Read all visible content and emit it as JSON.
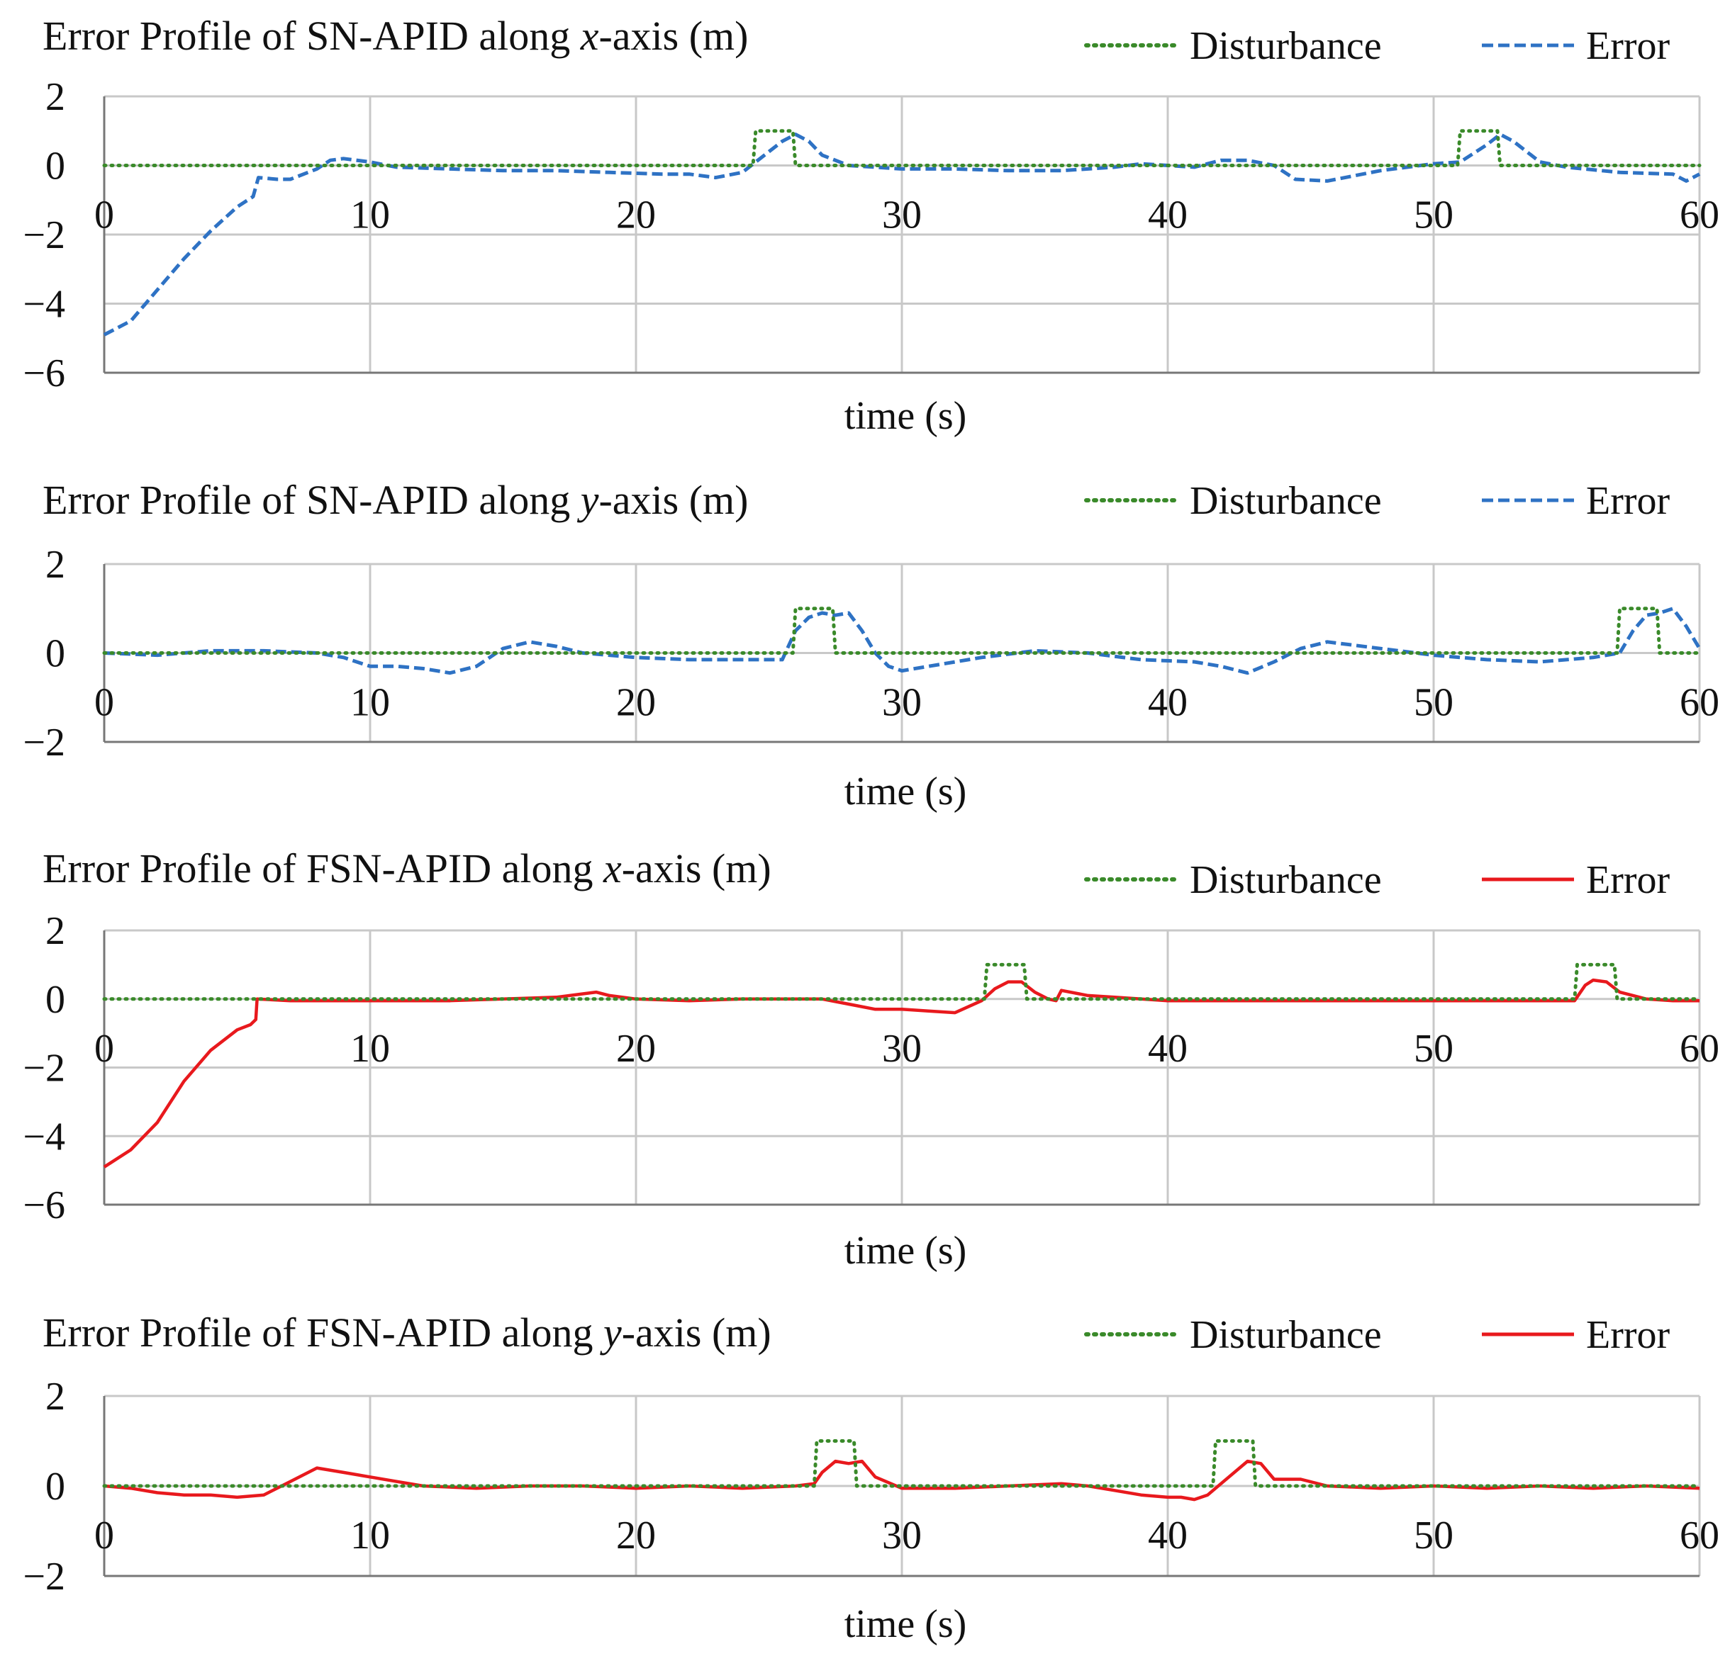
{
  "colors": {
    "disturbance": "#3a8a2a",
    "error_sn": "#2e72c4",
    "error_fsn": "#e8191d",
    "grid": "#c8c8c8",
    "axis": "#777777"
  },
  "chart_data": [
    {
      "type": "line",
      "title_prefix": "Error Profile of SN-APID along ",
      "title_axis": "x",
      "title_suffix": "-axis (m)",
      "xlabel": "time (s)",
      "xlim": [
        0,
        60
      ],
      "ylim": [
        -6,
        2
      ],
      "xticks": [
        "0",
        "10",
        "20",
        "30",
        "40",
        "50",
        "60"
      ],
      "yticks": [
        "2",
        "0",
        "−2",
        "−4",
        "−6"
      ],
      "legend": [
        "Disturbance",
        "Error"
      ],
      "series": [
        {
          "name": "Disturbance",
          "style": "dotted",
          "x": [
            0,
            24.4,
            24.5,
            25.9,
            26.0,
            50.9,
            51.0,
            52.4,
            52.5,
            60
          ],
          "y": [
            0,
            0,
            1,
            1,
            0,
            0,
            1,
            1,
            0,
            0
          ]
        },
        {
          "name": "Error",
          "style": "dashed",
          "x": [
            0,
            1,
            2,
            3,
            4,
            5,
            5.6,
            5.8,
            6.5,
            7,
            8,
            8.5,
            9,
            10,
            11,
            13,
            15,
            17,
            19,
            21,
            22,
            23,
            24,
            25,
            25.5,
            26,
            26.5,
            27,
            28,
            30,
            32,
            34,
            36,
            38,
            39,
            40,
            41,
            42,
            43,
            44,
            44.8,
            46,
            47,
            48,
            50,
            51,
            52,
            52.5,
            53,
            54,
            55,
            57,
            59,
            59.5,
            60
          ],
          "y": [
            -4.9,
            -4.5,
            -3.6,
            -2.7,
            -1.9,
            -1.2,
            -0.9,
            -0.35,
            -0.4,
            -0.4,
            -0.1,
            0.15,
            0.2,
            0.1,
            -0.05,
            -0.1,
            -0.15,
            -0.15,
            -0.2,
            -0.25,
            -0.25,
            -0.35,
            -0.2,
            0.4,
            0.7,
            0.9,
            0.7,
            0.3,
            0,
            -0.1,
            -0.1,
            -0.15,
            -0.15,
            -0.05,
            0.05,
            0,
            -0.05,
            0.15,
            0.15,
            0,
            -0.4,
            -0.45,
            -0.3,
            -0.15,
            0.05,
            0.1,
            0.6,
            0.9,
            0.7,
            0.1,
            -0.05,
            -0.2,
            -0.25,
            -0.45,
            -0.25
          ]
        }
      ]
    },
    {
      "type": "line",
      "title_prefix": "Error Profile of SN-APID along ",
      "title_axis": "y",
      "title_suffix": "-axis (m)",
      "xlabel": "time (s)",
      "xlim": [
        0,
        60
      ],
      "ylim": [
        -2,
        2
      ],
      "xticks": [
        "0",
        "10",
        "20",
        "30",
        "40",
        "50",
        "60"
      ],
      "yticks": [
        "2",
        "0",
        "−2"
      ],
      "legend": [
        "Disturbance",
        "Error"
      ],
      "series": [
        {
          "name": "Disturbance",
          "style": "dotted",
          "x": [
            0,
            25.9,
            26.0,
            27.4,
            27.5,
            56.9,
            57.0,
            58.4,
            58.5,
            60
          ],
          "y": [
            0,
            0,
            1,
            1,
            0,
            0,
            1,
            1,
            0,
            0
          ]
        },
        {
          "name": "Error",
          "style": "dashed",
          "x": [
            0,
            2,
            4,
            6,
            8,
            9,
            10,
            11,
            12,
            13,
            14,
            15,
            16,
            17,
            18,
            20,
            22,
            24,
            25.5,
            26,
            26.5,
            27,
            27.5,
            28,
            28.5,
            29,
            29.5,
            30,
            31,
            33,
            35,
            37,
            39,
            41,
            42,
            43,
            44,
            45,
            46,
            48,
            50,
            52,
            54,
            56,
            57,
            57.5,
            58,
            58.5,
            59,
            59.5,
            60
          ],
          "y": [
            0,
            -0.05,
            0.05,
            0.05,
            0,
            -0.1,
            -0.3,
            -0.3,
            -0.35,
            -0.45,
            -0.3,
            0.1,
            0.25,
            0.15,
            0,
            -0.1,
            -0.15,
            -0.15,
            -0.15,
            0.5,
            0.8,
            0.9,
            0.85,
            0.9,
            0.5,
            0,
            -0.3,
            -0.4,
            -0.3,
            -0.1,
            0.05,
            0,
            -0.15,
            -0.2,
            -0.3,
            -0.45,
            -0.2,
            0.1,
            0.25,
            0.1,
            -0.05,
            -0.15,
            -0.2,
            -0.1,
            0,
            0.5,
            0.85,
            0.9,
            1.0,
            0.6,
            0.1
          ]
        }
      ]
    },
    {
      "type": "line",
      "title_prefix": "Error Profile of FSN-APID along ",
      "title_axis": "x",
      "title_suffix": "-axis (m)",
      "xlabel": "time (s)",
      "xlim": [
        0,
        60
      ],
      "ylim": [
        -6,
        2
      ],
      "xticks": [
        "0",
        "10",
        "20",
        "30",
        "40",
        "50",
        "60"
      ],
      "yticks": [
        "2",
        "0",
        "−2",
        "−4",
        "−6"
      ],
      "legend": [
        "Disturbance",
        "Error"
      ],
      "series": [
        {
          "name": "Disturbance",
          "style": "dotted",
          "x": [
            0,
            33.1,
            33.2,
            34.6,
            34.7,
            55.3,
            55.4,
            56.8,
            56.9,
            60
          ],
          "y": [
            0,
            0,
            1,
            1,
            0,
            0,
            1,
            1,
            0,
            0
          ]
        },
        {
          "name": "Error",
          "style": "solid",
          "x": [
            0,
            1,
            2,
            3,
            4,
            5,
            5.5,
            5.7,
            5.75,
            7,
            9,
            11,
            13,
            15,
            17,
            18,
            18.5,
            19,
            20,
            22,
            24,
            26,
            27,
            28,
            29,
            30,
            31,
            32,
            33,
            33.5,
            34,
            34.5,
            35,
            35.5,
            35.8,
            36,
            37,
            38,
            40,
            42,
            44,
            46,
            48,
            50,
            52,
            54,
            55.3,
            55.7,
            56,
            56.5,
            57,
            58,
            59,
            60
          ],
          "y": [
            -4.9,
            -4.4,
            -3.6,
            -2.4,
            -1.5,
            -0.9,
            -0.75,
            -0.6,
            0,
            -0.05,
            -0.05,
            -0.05,
            -0.05,
            0,
            0.05,
            0.15,
            0.2,
            0.1,
            0,
            -0.05,
            0,
            0,
            0,
            -0.15,
            -0.3,
            -0.3,
            -0.35,
            -0.4,
            -0.05,
            0.3,
            0.5,
            0.5,
            0.2,
            0,
            -0.05,
            0.25,
            0.1,
            0.05,
            -0.05,
            -0.05,
            -0.05,
            -0.05,
            -0.05,
            -0.05,
            -0.05,
            -0.05,
            -0.05,
            0.4,
            0.55,
            0.5,
            0.2,
            0,
            -0.05,
            -0.05
          ]
        }
      ]
    },
    {
      "type": "line",
      "title_prefix": "Error Profile of FSN-APID along ",
      "title_axis": "y",
      "title_suffix": "-axis (m)",
      "xlabel": "time (s)",
      "xlim": [
        0,
        60
      ],
      "ylim": [
        -2,
        2
      ],
      "xticks": [
        "0",
        "10",
        "20",
        "30",
        "40",
        "50",
        "60"
      ],
      "yticks": [
        "2",
        "0",
        "−2"
      ],
      "legend": [
        "Disturbance",
        "Error"
      ],
      "series": [
        {
          "name": "Disturbance",
          "style": "dotted",
          "x": [
            0,
            26.7,
            26.8,
            28.2,
            28.3,
            41.7,
            41.8,
            43.2,
            43.3,
            60
          ],
          "y": [
            0,
            0,
            1,
            1,
            0,
            0,
            1,
            1,
            0,
            0
          ]
        },
        {
          "name": "Error",
          "style": "solid",
          "x": [
            0,
            1,
            2,
            3,
            4,
            5,
            6,
            7,
            8,
            9,
            10,
            11,
            12,
            14,
            16,
            18,
            20,
            22,
            24,
            26,
            26.7,
            27,
            27.5,
            28,
            28.5,
            29,
            30,
            32,
            34,
            36,
            37,
            38,
            39,
            40,
            40.5,
            41,
            41.5,
            42,
            43,
            43.5,
            44,
            45,
            46,
            48,
            50,
            52,
            54,
            56,
            58,
            60
          ],
          "y": [
            0,
            -0.05,
            -0.15,
            -0.2,
            -0.2,
            -0.25,
            -0.2,
            0.1,
            0.4,
            0.3,
            0.2,
            0.1,
            0,
            -0.05,
            0,
            0,
            -0.05,
            0,
            -0.05,
            0,
            0.05,
            0.3,
            0.55,
            0.5,
            0.55,
            0.2,
            -0.05,
            -0.05,
            0,
            0.05,
            0,
            -0.1,
            -0.2,
            -0.25,
            -0.25,
            -0.3,
            -0.2,
            0.05,
            0.55,
            0.5,
            0.15,
            0.15,
            0,
            -0.05,
            0,
            -0.05,
            0,
            -0.05,
            0,
            -0.05
          ]
        }
      ]
    }
  ]
}
